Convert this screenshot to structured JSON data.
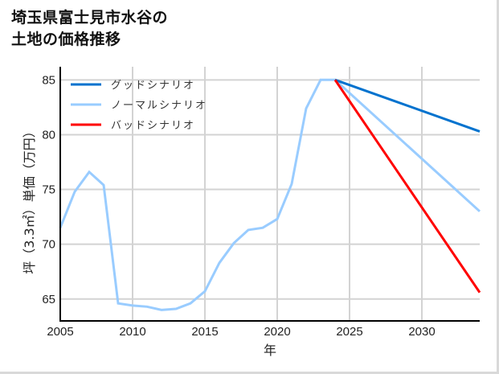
{
  "title": {
    "line1": "埼玉県富士見市水谷の",
    "line2": "土地の価格推移"
  },
  "axes": {
    "xlabel": "年",
    "ylabel": "坪（3.3㎡）単価（万円）",
    "xticks": [
      "2005",
      "2010",
      "2015",
      "2020",
      "2025",
      "2030"
    ],
    "yticks": [
      "85",
      "80",
      "75",
      "70",
      "65"
    ]
  },
  "legend": {
    "items": [
      {
        "label": "グッドシナリオ",
        "color": "#0072CE"
      },
      {
        "label": "ノーマルシナリオ",
        "color": "#99CCFF"
      },
      {
        "label": "バッドシナリオ",
        "color": "#FF0000"
      }
    ]
  },
  "chart_data": {
    "type": "line",
    "title": "埼玉県富士見市水谷の土地の価格推移",
    "xlabel": "年",
    "ylabel": "坪（3.3㎡）単価（万円）",
    "xlim": [
      2005,
      2034
    ],
    "ylim": [
      63,
      86.2
    ],
    "grid": true,
    "legend_position": "upper left",
    "series": [
      {
        "name": "ノーマルシナリオ",
        "color": "#99CCFF",
        "x": [
          2005,
          2006,
          2007,
          2008,
          2009,
          2010,
          2011,
          2012,
          2013,
          2014,
          2015,
          2016,
          2017,
          2018,
          2019,
          2020,
          2021,
          2022,
          2023,
          2024,
          2034
        ],
        "values": [
          71.5,
          74.8,
          76.6,
          75.4,
          64.6,
          64.4,
          64.3,
          64.0,
          64.1,
          64.6,
          65.7,
          68.3,
          70.1,
          71.3,
          71.5,
          72.3,
          75.5,
          82.4,
          85.0,
          85.0,
          73.0
        ]
      },
      {
        "name": "グッドシナリオ",
        "color": "#0072CE",
        "x": [
          2024,
          2034
        ],
        "values": [
          85.0,
          80.3
        ]
      },
      {
        "name": "バッドシナリオ",
        "color": "#FF0000",
        "x": [
          2024,
          2034
        ],
        "values": [
          85.0,
          65.6
        ]
      }
    ]
  }
}
